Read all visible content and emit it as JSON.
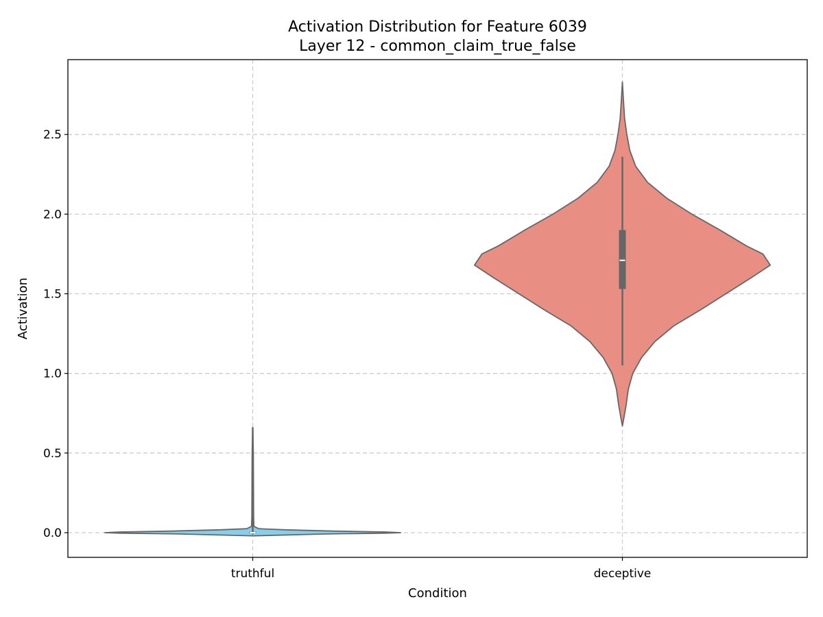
{
  "chart_data": {
    "type": "violin",
    "title": "Activation Distribution for Feature 6039",
    "subtitle": "Layer 12 - common_claim_true_false",
    "xlabel": "Condition",
    "ylabel": "Activation",
    "categories": [
      "truthful",
      "deceptive"
    ],
    "ylim": [
      -0.155,
      2.97
    ],
    "yticks": [
      0.0,
      0.5,
      1.0,
      1.5,
      2.0,
      2.5
    ],
    "ytick_labels": [
      "0.0",
      "0.5",
      "1.0",
      "1.5",
      "2.0",
      "2.5"
    ],
    "grid": true,
    "colors": {
      "truthful": "#87ceeb",
      "deceptive": "#e88e82",
      "outline": "#666666",
      "box": "#666666",
      "median": "#ffffff"
    },
    "series": [
      {
        "category": "truthful",
        "min": -0.01,
        "q1": -0.003,
        "median": 0.0,
        "q3": 0.005,
        "max": 0.66,
        "kde_relative_width": [
          [
            -0.02,
            0.0
          ],
          [
            -0.008,
            0.5
          ],
          [
            -0.003,
            0.9
          ],
          [
            0.0,
            1.0
          ],
          [
            0.004,
            0.9
          ],
          [
            0.01,
            0.55
          ],
          [
            0.018,
            0.22
          ],
          [
            0.025,
            0.04
          ],
          [
            0.04,
            0.008
          ],
          [
            0.1,
            0.006
          ],
          [
            0.3,
            0.005
          ],
          [
            0.5,
            0.004
          ],
          [
            0.66,
            0.0
          ]
        ]
      },
      {
        "category": "deceptive",
        "min": 1.05,
        "q1": 1.53,
        "median": 1.71,
        "q3": 1.9,
        "max": 2.36,
        "kde_relative_width": [
          [
            0.67,
            0.0
          ],
          [
            0.72,
            0.01
          ],
          [
            0.8,
            0.025
          ],
          [
            0.9,
            0.04
          ],
          [
            1.0,
            0.07
          ],
          [
            1.1,
            0.13
          ],
          [
            1.2,
            0.22
          ],
          [
            1.3,
            0.35
          ],
          [
            1.4,
            0.53
          ],
          [
            1.5,
            0.7
          ],
          [
            1.6,
            0.87
          ],
          [
            1.68,
            1.0
          ],
          [
            1.75,
            0.95
          ],
          [
            1.8,
            0.84
          ],
          [
            1.9,
            0.66
          ],
          [
            2.0,
            0.47
          ],
          [
            2.1,
            0.3
          ],
          [
            2.2,
            0.17
          ],
          [
            2.3,
            0.09
          ],
          [
            2.4,
            0.05
          ],
          [
            2.5,
            0.03
          ],
          [
            2.6,
            0.015
          ],
          [
            2.7,
            0.008
          ],
          [
            2.83,
            0.0
          ]
        ]
      }
    ]
  }
}
